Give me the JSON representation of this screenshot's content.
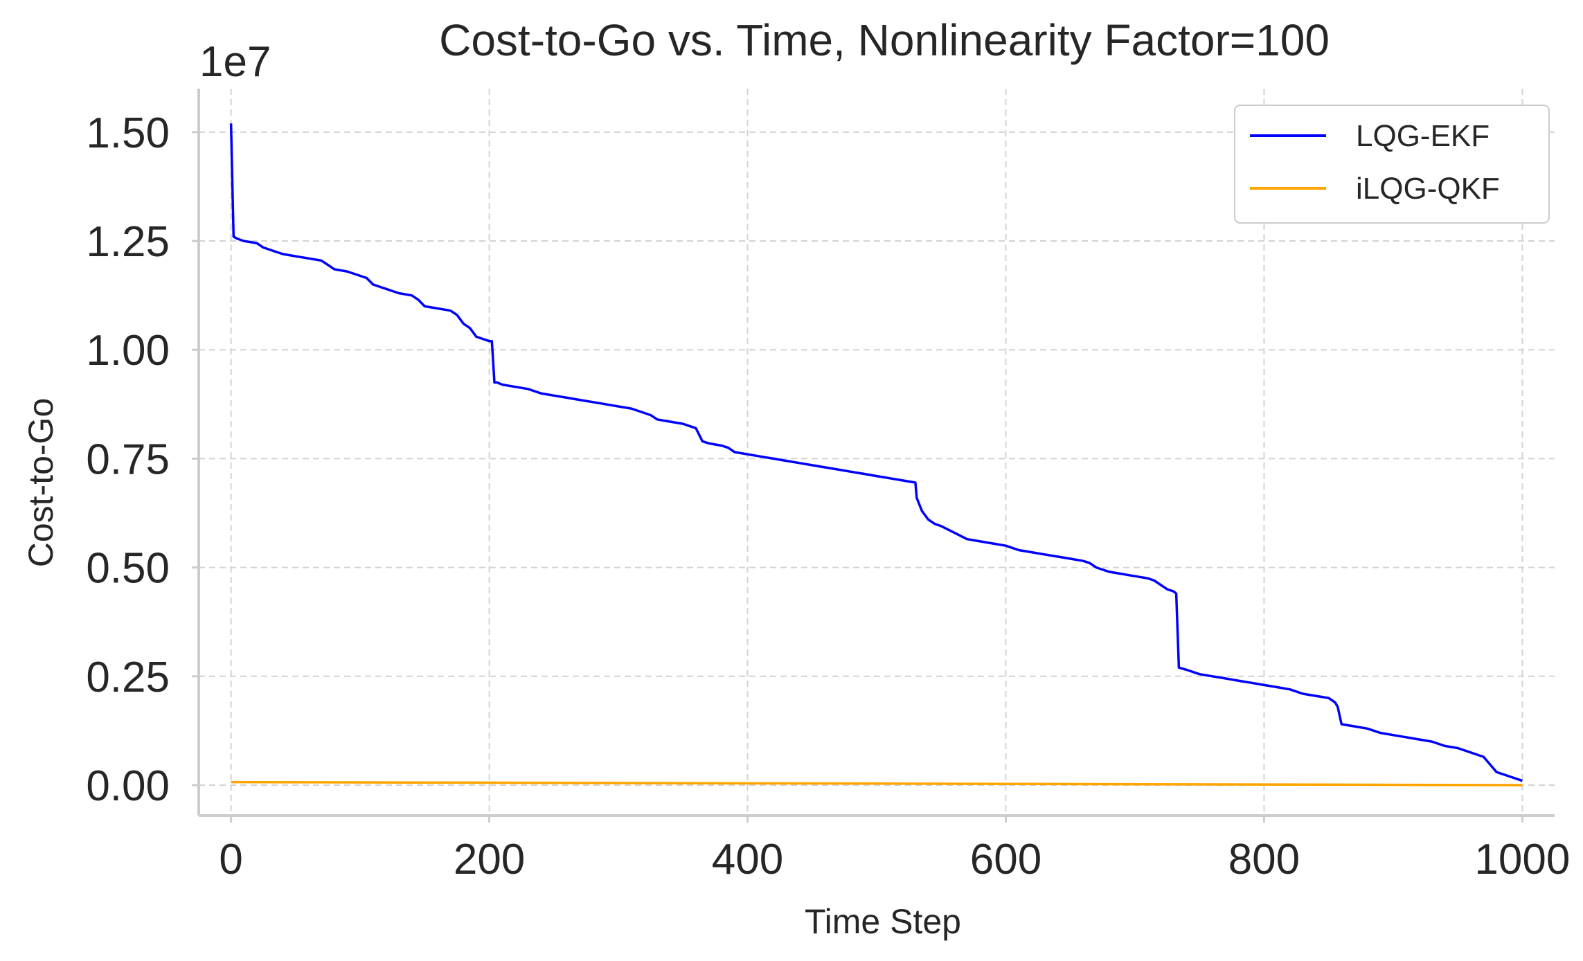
{
  "chart_data": {
    "type": "line",
    "title": "Cost-to-Go vs. Time, Nonlinearity Factor=100",
    "xlabel": "Time Step",
    "ylabel": "Cost-to-Go",
    "y_offset_label": "1e7",
    "xlim": [
      -25,
      1025
    ],
    "ylim": [
      -0.07,
      1.6
    ],
    "x_ticks": [
      0,
      200,
      400,
      600,
      800,
      1000
    ],
    "x_tick_labels": [
      "0",
      "200",
      "400",
      "600",
      "800",
      "1000"
    ],
    "y_ticks": [
      0,
      0.25,
      0.5,
      0.75,
      1.0,
      1.25,
      1.5
    ],
    "y_tick_labels": [
      "0.00",
      "0.25",
      "0.50",
      "0.75",
      "1.00",
      "1.25",
      "1.50"
    ],
    "grid": true,
    "legend_position": "top-right",
    "series": [
      {
        "name": "LQG-EKF",
        "color": "#0000ff",
        "x": [
          0,
          2,
          5,
          10,
          20,
          25,
          30,
          35,
          40,
          50,
          60,
          70,
          75,
          80,
          90,
          100,
          105,
          110,
          115,
          120,
          125,
          130,
          140,
          145,
          150,
          160,
          170,
          175,
          180,
          185,
          190,
          200,
          202,
          204,
          206,
          210,
          220,
          230,
          240,
          250,
          260,
          270,
          280,
          290,
          300,
          310,
          320,
          325,
          330,
          340,
          350,
          355,
          360,
          365,
          370,
          380,
          385,
          390,
          400,
          410,
          420,
          430,
          440,
          450,
          460,
          470,
          480,
          490,
          500,
          510,
          520,
          530,
          531,
          535,
          540,
          545,
          550,
          560,
          570,
          580,
          590,
          600,
          610,
          620,
          630,
          640,
          650,
          660,
          665,
          670,
          680,
          690,
          700,
          710,
          715,
          720,
          725,
          730,
          732,
          734,
          740,
          750,
          760,
          770,
          780,
          790,
          800,
          810,
          820,
          830,
          840,
          850,
          855,
          857,
          860,
          870,
          880,
          890,
          900,
          910,
          920,
          930,
          940,
          950,
          960,
          965,
          970,
          980,
          990,
          1000
        ],
        "values": [
          1.52,
          1.26,
          1.255,
          1.25,
          1.245,
          1.235,
          1.23,
          1.225,
          1.22,
          1.215,
          1.21,
          1.205,
          1.195,
          1.185,
          1.18,
          1.17,
          1.165,
          1.15,
          1.145,
          1.14,
          1.135,
          1.13,
          1.125,
          1.115,
          1.1,
          1.095,
          1.09,
          1.08,
          1.06,
          1.05,
          1.03,
          1.02,
          1.02,
          0.925,
          0.925,
          0.92,
          0.915,
          0.91,
          0.9,
          0.895,
          0.89,
          0.885,
          0.88,
          0.875,
          0.87,
          0.865,
          0.855,
          0.85,
          0.84,
          0.835,
          0.83,
          0.825,
          0.82,
          0.79,
          0.785,
          0.78,
          0.775,
          0.765,
          0.76,
          0.755,
          0.75,
          0.745,
          0.74,
          0.735,
          0.73,
          0.725,
          0.72,
          0.715,
          0.71,
          0.705,
          0.7,
          0.695,
          0.66,
          0.63,
          0.61,
          0.6,
          0.595,
          0.58,
          0.565,
          0.56,
          0.555,
          0.55,
          0.54,
          0.535,
          0.53,
          0.525,
          0.52,
          0.515,
          0.51,
          0.5,
          0.49,
          0.485,
          0.48,
          0.475,
          0.47,
          0.46,
          0.45,
          0.445,
          0.44,
          0.27,
          0.265,
          0.255,
          0.25,
          0.245,
          0.24,
          0.235,
          0.23,
          0.225,
          0.22,
          0.21,
          0.205,
          0.2,
          0.19,
          0.18,
          0.14,
          0.135,
          0.13,
          0.12,
          0.115,
          0.11,
          0.105,
          0.1,
          0.09,
          0.085,
          0.075,
          0.07,
          0.065,
          0.03,
          0.02,
          0.01
        ],
        "y_unit_multiplier": 10000000
      },
      {
        "name": "iLQG-QKF",
        "color": "#ffa500",
        "x": [
          0,
          1000
        ],
        "values": [
          0.007,
          0.0
        ],
        "y_unit_multiplier": 10000000
      }
    ]
  }
}
